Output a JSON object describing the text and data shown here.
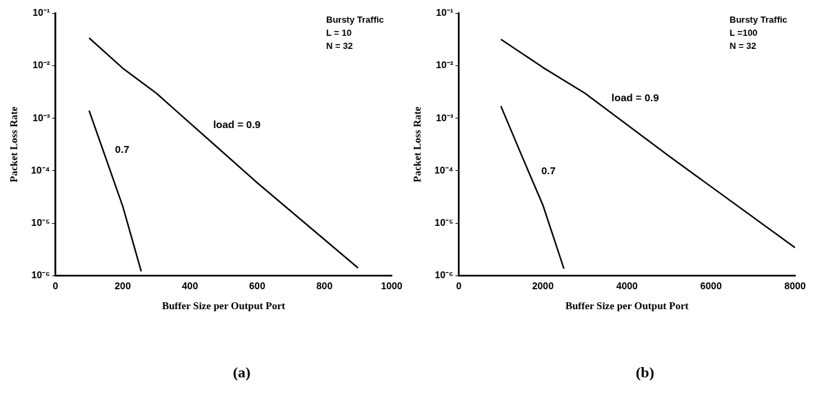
{
  "chart_data": [
    {
      "type": "line",
      "xlabel": "Buffer Size per Output Port",
      "ylabel": "Packet Loss Rate",
      "log": "y",
      "grid": false,
      "legend": false,
      "marker": "none",
      "line_style": "solid",
      "xlim": [
        0,
        1000
      ],
      "xticks": [
        0,
        200,
        400,
        600,
        800,
        1000
      ],
      "ylim": [
        1e-06,
        0.1
      ],
      "yticks": [
        {
          "value": 1e-06,
          "label": "10⁻⁶"
        },
        {
          "value": 1e-05,
          "label": "10⁻⁵"
        },
        {
          "value": 0.0001,
          "label": "10⁻⁴"
        },
        {
          "value": 0.001,
          "label": "10⁻³"
        },
        {
          "value": 0.01,
          "label": "10⁻²"
        },
        {
          "value": 0.1,
          "label": "10⁻¹"
        }
      ],
      "series": [
        {
          "name": "load = 0.9",
          "color": "#000000",
          "x": [
            100,
            200,
            300,
            450,
            600,
            900
          ],
          "values": [
            0.034,
            0.009,
            0.003,
            0.00042,
            5.9e-05,
            1.4e-06
          ]
        },
        {
          "name": "0.7",
          "color": "#000000",
          "x": [
            100,
            200,
            255
          ],
          "values": [
            0.0014,
            2.1e-05,
            1.2e-06
          ]
        }
      ],
      "annotations": [
        "Bursty Traffic",
        "L = 10",
        "N = 32",
        "(a)"
      ]
    },
    {
      "type": "line",
      "xlabel": "Buffer Size per Output Port",
      "ylabel": "Packet Loss Rate",
      "log": "y",
      "grid": false,
      "legend": false,
      "marker": "none",
      "line_style": "solid",
      "xlim": [
        0,
        8000
      ],
      "xticks": [
        0,
        2000,
        4000,
        6000,
        8000
      ],
      "ylim": [
        1e-06,
        0.1
      ],
      "yticks": [
        {
          "value": 1e-06,
          "label": "10⁻⁶"
        },
        {
          "value": 1e-05,
          "label": "10⁻⁵"
        },
        {
          "value": 0.0001,
          "label": "10⁻⁴"
        },
        {
          "value": 0.001,
          "label": "10⁻³"
        },
        {
          "value": 0.01,
          "label": "10⁻²"
        },
        {
          "value": 0.1,
          "label": "10⁻¹"
        }
      ],
      "series": [
        {
          "name": "load = 0.9",
          "color": "#000000",
          "x": [
            1000,
            2000,
            3000,
            5000,
            8000
          ],
          "values": [
            0.032,
            0.0093,
            0.003,
            0.00019,
            3.4e-06
          ]
        },
        {
          "name": "0.7",
          "color": "#000000",
          "x": [
            1000,
            1500,
            2000,
            2500
          ],
          "values": [
            0.0017,
            0.00019,
            2.2e-05,
            1.35e-06
          ]
        }
      ],
      "annotations": [
        "Bursty Traffic",
        "L =100",
        "N = 32",
        "(b)"
      ]
    }
  ]
}
